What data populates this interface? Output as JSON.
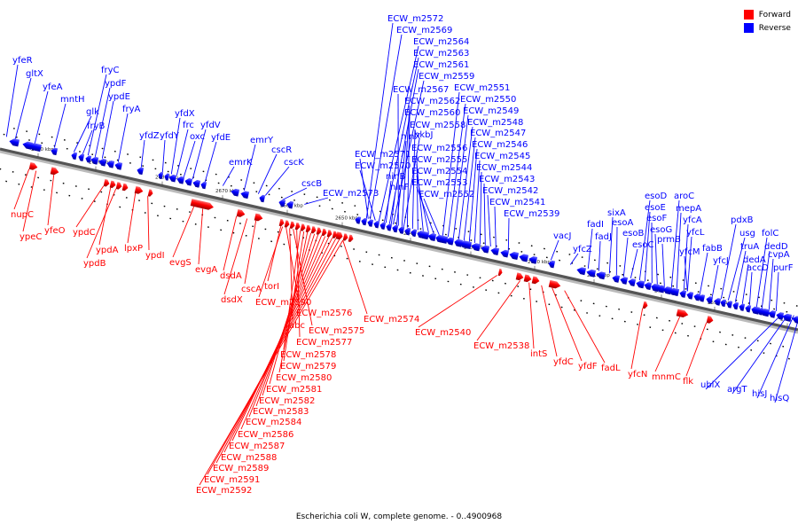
{
  "title": "Escherichia coli W, complete genome. - 0..4900968",
  "legend": [
    {
      "label": "Forward",
      "color": "#ff0000"
    },
    {
      "label": "Reverse",
      "color": "#0000ff"
    }
  ],
  "colors": {
    "forward": "#ff0000",
    "reverse": "#0000ff",
    "backbone": "#555555"
  },
  "ticks": [
    "2700 kbp",
    "2690 kbp",
    "2680 kbp",
    "2670 kbp",
    "2660 kbp",
    "2650 kbp",
    "2640 kbp",
    "2630 kbp",
    "2620 kbp",
    "2610 kbp",
    "2600 kbp",
    "2590 kbp",
    "2580 kbp"
  ],
  "reverse_labels": [
    "yfeR",
    "gltX",
    "yfeA",
    "mntH",
    "glk",
    "fryB",
    "fryC",
    "ypdF",
    "ypdE",
    "fryA",
    "yfdZ",
    "yfdY",
    "yfdX",
    "frc",
    "oxc",
    "yfdV",
    "yfdE",
    "emrK",
    "emrY",
    "cscR",
    "cscK",
    "cscB",
    "ECW_m2573",
    "ECW_m2571",
    "ECW_m2570",
    "ninB",
    "ninF",
    "ninX",
    "hkbJ",
    "ECW_m2572",
    "ECW_m2569",
    "ECW_m2564",
    "ECW_m2563",
    "ECW_m2561",
    "ECW_m2559",
    "ECW_m2567",
    "ECW_m2562",
    "ECW_m2560",
    "ECW_m2558",
    "ECW_m2556",
    "ECW_m2555",
    "ECW_m2554",
    "ECW_m2553",
    "ECW_m2552",
    "ECW_m2551",
    "ECW_m2550",
    "ECW_m2549",
    "ECW_m2548",
    "ECW_m2547",
    "ECW_m2546",
    "ECW_m2545",
    "ECW_m2544",
    "ECW_m2543",
    "ECW_m2542",
    "ECW_m2541",
    "ECW_m2539",
    "vacJ",
    "yfcZ",
    "fadI",
    "fadJ",
    "sixA",
    "esoA",
    "esoB",
    "esoC",
    "esoD",
    "esoE",
    "esoF",
    "esoG",
    "prmB",
    "aroC",
    "mepA",
    "yfcA",
    "yfcL",
    "yfcM",
    "fabB",
    "yfcJ",
    "pdxB",
    "usg",
    "truA",
    "dedA",
    "accD",
    "folC",
    "dedD",
    "cvpA",
    "purF",
    "ubiX",
    "argT",
    "hisJ",
    "hisQ"
  ],
  "forward_labels": [
    "nupC",
    "ypeC",
    "yfeO",
    "ypdC",
    "ypdA",
    "ypdB",
    "lpxP",
    "ypdI",
    "evgS",
    "evgA",
    "dsdA",
    "dsdX",
    "cscA",
    "torI",
    "ECW_m2590",
    "ECW_m2576",
    "abc",
    "ECW_m2575",
    "ECW_m2577",
    "ECW_m2578",
    "ECW_m2579",
    "ECW_m2580",
    "ECW_m2581",
    "ECW_m2582",
    "ECW_m2583",
    "ECW_m2584",
    "ECW_m2586",
    "ECW_m2587",
    "ECW_m2588",
    "ECW_m2589",
    "ECW_m2591",
    "ECW_m2592",
    "ECW_m2574",
    "ECW_m2540",
    "ECW_m2538",
    "intS",
    "yfdC",
    "yfdF",
    "fadL",
    "yfcN",
    "mnmC",
    "flk"
  ]
}
